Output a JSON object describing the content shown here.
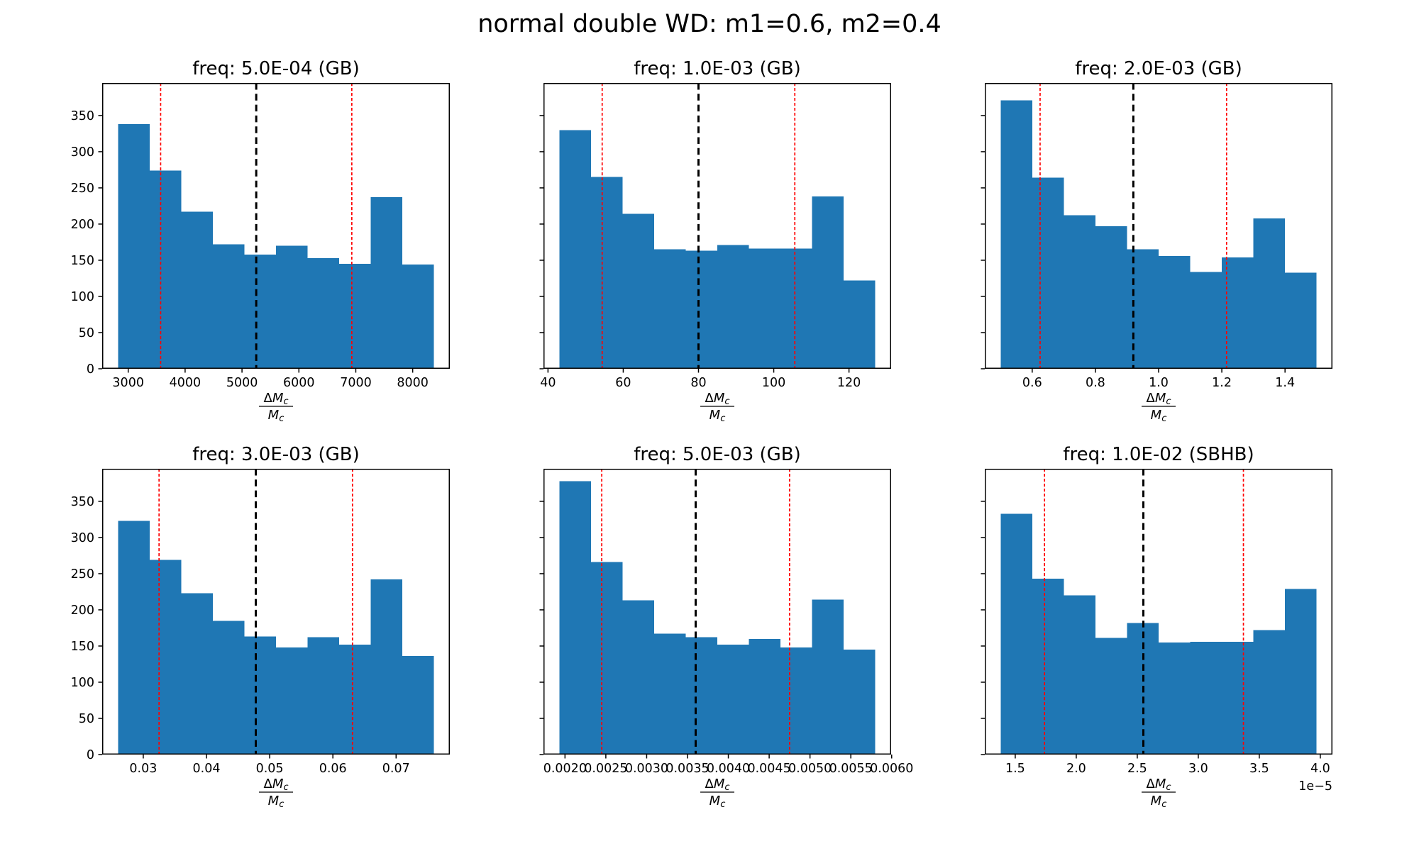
{
  "figure": {
    "suptitle": "normal double WD: m1=0.6, m2=0.4",
    "background_color": "#ffffff",
    "bar_color": "#1f77b4",
    "median_line_color": "#000000",
    "bound_line_color": "#ff0000",
    "xlabel_numerator_delta": "Δ",
    "xlabel_numerator_var": "M",
    "xlabel_denominator_var": "M",
    "xlabel_subscript": "c",
    "yticks": [
      0,
      50,
      100,
      150,
      200,
      250,
      300,
      350
    ],
    "ytick_labels": [
      "0",
      "50",
      "100",
      "150",
      "200",
      "250",
      "300",
      "350"
    ],
    "ylim": [
      0,
      395
    ]
  },
  "chart_data": [
    {
      "type": "histogram",
      "title": "freq: 5.0E-04 (GB)",
      "row": 0,
      "col": 0,
      "bin_start": 2820,
      "bin_end": 8375,
      "bins": 10,
      "counts": [
        338,
        274,
        217,
        172,
        158,
        170,
        153,
        145,
        237,
        144
      ],
      "vline_black": 5250,
      "vlines_red": [
        3570,
        6930
      ],
      "xticks": [
        3000,
        4000,
        5000,
        6000,
        7000,
        8000
      ],
      "xtick_labels": [
        "3000",
        "4000",
        "5000",
        "6000",
        "7000",
        "8000"
      ],
      "show_ytick_labels": true,
      "offset_text": ""
    },
    {
      "type": "histogram",
      "title": "freq: 1.0E-03 (GB)",
      "row": 0,
      "col": 1,
      "bin_start": 43,
      "bin_end": 127,
      "bins": 10,
      "counts": [
        330,
        265,
        214,
        165,
        163,
        171,
        166,
        166,
        238,
        122
      ],
      "vline_black": 80,
      "vlines_red": [
        54.4,
        105.6
      ],
      "xticks": [
        40,
        60,
        80,
        100,
        120
      ],
      "xtick_labels": [
        "40",
        "60",
        "80",
        "100",
        "120"
      ],
      "show_ytick_labels": false,
      "offset_text": ""
    },
    {
      "type": "histogram",
      "title": "freq: 2.0E-03 (GB)",
      "row": 0,
      "col": 2,
      "bin_start": 0.5,
      "bin_end": 1.5,
      "bins": 10,
      "counts": [
        371,
        264,
        212,
        197,
        165,
        156,
        134,
        154,
        208,
        133
      ],
      "vline_black": 0.92,
      "vlines_red": [
        0.625,
        1.215
      ],
      "xticks": [
        0.6,
        0.8,
        1.0,
        1.2,
        1.4
      ],
      "xtick_labels": [
        "0.6",
        "0.8",
        "1.0",
        "1.2",
        "1.4"
      ],
      "show_ytick_labels": false,
      "offset_text": ""
    },
    {
      "type": "histogram",
      "title": "freq: 3.0E-03 (GB)",
      "row": 1,
      "col": 0,
      "bin_start": 0.026,
      "bin_end": 0.076,
      "bins": 10,
      "counts": [
        323,
        269,
        223,
        185,
        163,
        148,
        162,
        152,
        242,
        136
      ],
      "vline_black": 0.0478,
      "vlines_red": [
        0.0325,
        0.0631
      ],
      "xticks": [
        0.03,
        0.04,
        0.05,
        0.06,
        0.07
      ],
      "xtick_labels": [
        "0.03",
        "0.04",
        "0.05",
        "0.06",
        "0.07"
      ],
      "show_ytick_labels": true,
      "offset_text": ""
    },
    {
      "type": "histogram",
      "title": "freq: 5.0E-03 (GB)",
      "row": 1,
      "col": 1,
      "bin_start": 0.00193,
      "bin_end": 0.0058,
      "bins": 10,
      "counts": [
        378,
        266,
        213,
        167,
        162,
        152,
        160,
        148,
        214,
        145
      ],
      "vline_black": 0.0036,
      "vlines_red": [
        0.00245,
        0.00475
      ],
      "xticks": [
        0.002,
        0.0025,
        0.003,
        0.0035,
        0.004,
        0.0045,
        0.005,
        0.0055,
        0.006
      ],
      "xtick_labels": [
        "0.0020",
        "0.0025",
        "0.0030",
        "0.0035",
        "0.0040",
        "0.0045",
        "0.0050",
        "0.0055",
        "0.0060"
      ],
      "show_ytick_labels": false,
      "offset_text": ""
    },
    {
      "type": "histogram",
      "title": "freq: 1.0E-02 (SBHB)",
      "row": 1,
      "col": 2,
      "bin_start": 1.38e-05,
      "bin_end": 3.97e-05,
      "bins": 10,
      "counts": [
        333,
        243,
        220,
        161,
        182,
        155,
        156,
        156,
        172,
        229
      ],
      "vline_black": 2.55e-05,
      "vlines_red": [
        1.74e-05,
        3.37e-05
      ],
      "xticks": [
        1.5e-05,
        2e-05,
        2.5e-05,
        3e-05,
        3.5e-05,
        4e-05
      ],
      "xtick_labels": [
        "1.5",
        "2.0",
        "2.5",
        "3.0",
        "3.5",
        "4.0"
      ],
      "show_ytick_labels": false,
      "offset_text": "1e−5"
    }
  ]
}
